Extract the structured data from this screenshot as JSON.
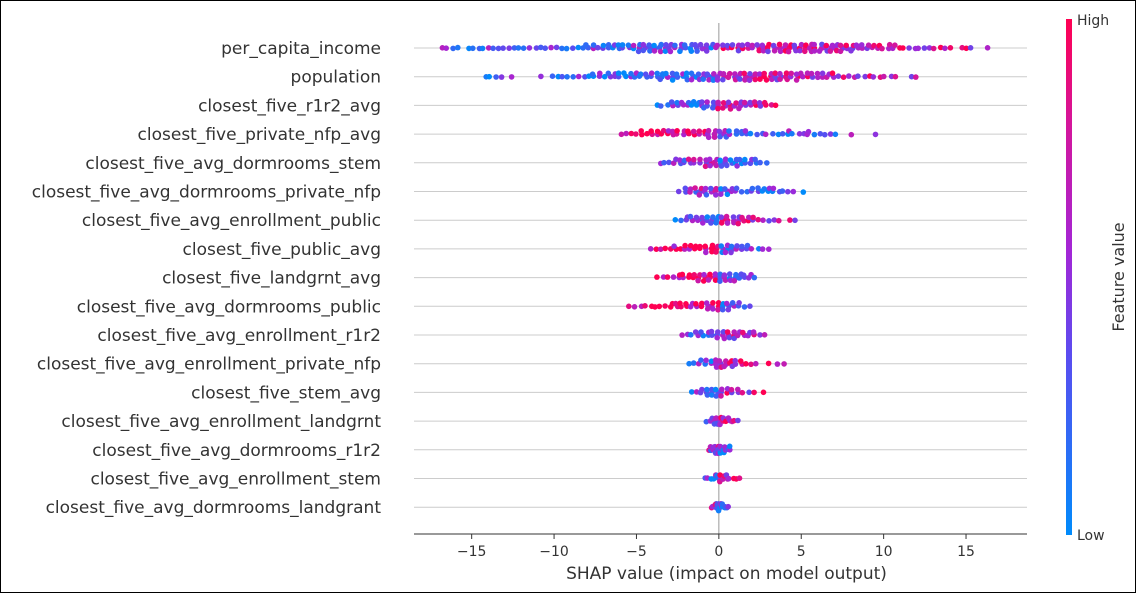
{
  "chart_data": {
    "type": "scatter",
    "subtype": "shap-beeswarm",
    "title": "",
    "xlabel": "SHAP value (impact on model output)",
    "ylabel": "",
    "xlim": [
      -18.5,
      18.7
    ],
    "xticks": [
      -15,
      -10,
      -5,
      0,
      5,
      10,
      15
    ],
    "xtick_labels": [
      "−15",
      "−10",
      "−5",
      "0",
      "5",
      "10",
      "15"
    ],
    "grid": "horizontal per feature row",
    "colorbar": {
      "title": "Feature value",
      "high_label": "High",
      "low_label": "Low",
      "low_color": "#008bfb",
      "high_color": "#ff0052"
    },
    "features": [
      {
        "name": "per_capita_income",
        "min": -16.8,
        "max": 16.9,
        "density": [
          [
            -16.8,
            0.5
          ],
          [
            -13,
            0.8
          ],
          [
            -9,
            1.2
          ],
          [
            -6,
            1.8
          ],
          [
            -4.5,
            3
          ],
          [
            -3,
            2.2
          ],
          [
            -1.5,
            2.6
          ],
          [
            0,
            2
          ],
          [
            2,
            2.6
          ],
          [
            4,
            3
          ],
          [
            5.5,
            3.2
          ],
          [
            7.5,
            2.6
          ],
          [
            9.5,
            2
          ],
          [
            11.5,
            1.2
          ],
          [
            13.3,
            0.7
          ],
          [
            16.9,
            0.3
          ]
        ]
      },
      {
        "name": "population",
        "min": -14.2,
        "max": 12.3,
        "density": [
          [
            -14.2,
            0.4
          ],
          [
            -11,
            0.5
          ],
          [
            -8.5,
            1.2
          ],
          [
            -6,
            2
          ],
          [
            -4,
            2.6
          ],
          [
            -2.5,
            2.4
          ],
          [
            -1,
            2.8
          ],
          [
            0.5,
            2.5
          ],
          [
            1.5,
            3
          ],
          [
            3,
            2.6
          ],
          [
            4.5,
            2.2
          ],
          [
            6.5,
            1.8
          ],
          [
            8,
            1
          ],
          [
            10,
            0.9
          ],
          [
            12.3,
            0.5
          ]
        ]
      },
      {
        "name": "closest_five_r1r2_avg",
        "min": -3.8,
        "max": 3.5,
        "density": [
          [
            -3.8,
            0.8
          ],
          [
            -2.5,
            1.6
          ],
          [
            -1,
            2.2
          ],
          [
            0,
            3
          ],
          [
            1,
            2.8
          ],
          [
            2,
            2.2
          ],
          [
            3.5,
            1
          ]
        ]
      },
      {
        "name": "closest_five_private_nfp_avg",
        "min": -6.3,
        "max": 9.9,
        "density": [
          [
            -6.3,
            0.5
          ],
          [
            -4.5,
            1.5
          ],
          [
            -3,
            2
          ],
          [
            -1,
            2.2
          ],
          [
            0,
            3
          ],
          [
            1.5,
            1.8
          ],
          [
            3,
            1.2
          ],
          [
            4.5,
            1.6
          ],
          [
            6.7,
            1
          ],
          [
            8,
            0.3
          ],
          [
            9.9,
            0.6
          ]
        ]
      },
      {
        "name": "closest_five_avg_dormrooms_stem",
        "min": -3.6,
        "max": 3.2,
        "density": [
          [
            -3.6,
            0.6
          ],
          [
            -2.5,
            1.6
          ],
          [
            -1,
            2.2
          ],
          [
            0,
            3.2
          ],
          [
            1,
            2.6
          ],
          [
            2,
            1.8
          ],
          [
            3.2,
            0.8
          ]
        ]
      },
      {
        "name": "closest_five_avg_dormrooms_private_nfp",
        "min": -2.4,
        "max": 5.2,
        "density": [
          [
            -2.4,
            1
          ],
          [
            -1,
            2.6
          ],
          [
            0,
            2.8
          ],
          [
            1,
            2
          ],
          [
            2,
            1.6
          ],
          [
            3,
            1.8
          ],
          [
            4.2,
            1.2
          ],
          [
            5.2,
            0.4
          ]
        ]
      },
      {
        "name": "closest_five_avg_enrollment_public",
        "min": -2.6,
        "max": 4.6,
        "density": [
          [
            -2.6,
            1
          ],
          [
            -1.5,
            2.2
          ],
          [
            0,
            3.2
          ],
          [
            1,
            2.6
          ],
          [
            2,
            1.6
          ],
          [
            3,
            1
          ],
          [
            4.6,
            0.6
          ]
        ]
      },
      {
        "name": "closest_five_public_avg",
        "min": -4.2,
        "max": 3.3,
        "density": [
          [
            -4.2,
            0.5
          ],
          [
            -2.5,
            1.6
          ],
          [
            -1,
            2.6
          ],
          [
            0,
            3.2
          ],
          [
            1,
            2.4
          ],
          [
            2.2,
            1.4
          ],
          [
            3.3,
            0.8
          ]
        ]
      },
      {
        "name": "closest_five_landgrnt_avg",
        "min": -3.7,
        "max": 2.2,
        "density": [
          [
            -3.7,
            0.7
          ],
          [
            -2.2,
            1.6
          ],
          [
            -1,
            2.4
          ],
          [
            0,
            3.2
          ],
          [
            1,
            2.4
          ],
          [
            2.2,
            1.2
          ]
        ]
      },
      {
        "name": "closest_five_avg_dormrooms_public",
        "min": -5.4,
        "max": 1.8,
        "density": [
          [
            -5.4,
            0.5
          ],
          [
            -3.5,
            1.2
          ],
          [
            -2,
            2
          ],
          [
            -1,
            2.6
          ],
          [
            0,
            3.2
          ],
          [
            1,
            2.2
          ],
          [
            1.8,
            0.8
          ]
        ]
      },
      {
        "name": "closest_five_avg_enrollment_r1r2",
        "min": -2.6,
        "max": 2.8,
        "density": [
          [
            -2.6,
            0.4
          ],
          [
            -1,
            1.8
          ],
          [
            0,
            3.2
          ],
          [
            1,
            2.6
          ],
          [
            2,
            1.6
          ],
          [
            2.8,
            0.6
          ]
        ]
      },
      {
        "name": "closest_five_avg_enrollment_private_nfp",
        "min": -1.8,
        "max": 3.9,
        "density": [
          [
            -1.8,
            0.8
          ],
          [
            -0.8,
            2
          ],
          [
            0,
            3
          ],
          [
            1,
            2
          ],
          [
            1.8,
            1
          ],
          [
            2.5,
            0.5
          ],
          [
            3.9,
            0.3
          ]
        ]
      },
      {
        "name": "closest_five_stem_avg",
        "min": -1.7,
        "max": 3.1,
        "density": [
          [
            -1.7,
            0.8
          ],
          [
            -0.5,
            2.6
          ],
          [
            0,
            3.2
          ],
          [
            1,
            1.8
          ],
          [
            2,
            1
          ],
          [
            3.1,
            0.4
          ]
        ]
      },
      {
        "name": "closest_five_avg_enrollment_landgrnt",
        "min": -0.7,
        "max": 1.1,
        "density": [
          [
            -0.7,
            1
          ],
          [
            0,
            3
          ],
          [
            0.6,
            1.6
          ],
          [
            1.1,
            0.6
          ]
        ]
      },
      {
        "name": "closest_five_avg_dormrooms_r1r2",
        "min": -0.6,
        "max": 0.7,
        "density": [
          [
            -0.6,
            1.4
          ],
          [
            0,
            3
          ],
          [
            0.7,
            1.2
          ]
        ]
      },
      {
        "name": "closest_five_avg_enrollment_stem",
        "min": -0.8,
        "max": 1.4,
        "density": [
          [
            -0.8,
            1
          ],
          [
            0,
            2.6
          ],
          [
            0.8,
            1.6
          ],
          [
            1.4,
            0.6
          ]
        ]
      },
      {
        "name": "closest_five_avg_dormrooms_landgrant",
        "min": -0.4,
        "max": 0.6,
        "density": [
          [
            -0.4,
            1
          ],
          [
            0,
            2.6
          ],
          [
            0.6,
            0.6
          ]
        ]
      }
    ]
  }
}
